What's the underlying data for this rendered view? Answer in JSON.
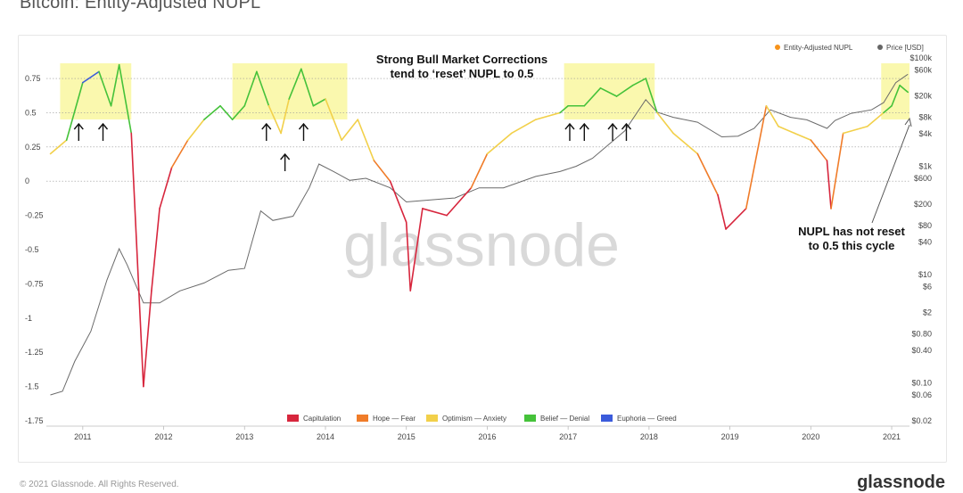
{
  "page": {
    "title": "Bitcoin: Entity-Adjusted NUPL",
    "copyright": "© 2021 Glassnode. All Rights Reserved.",
    "brand": "glassnode",
    "watermark": "glassnode"
  },
  "chart_data": {
    "type": "line",
    "title": "Bitcoin: Entity-Adjusted NUPL",
    "legend_position": "top-right",
    "series": [
      {
        "name": "Entity-Adjusted NUPL",
        "color": "#f7931a",
        "axis": "left",
        "x": [
          2010.6,
          2010.8,
          2011.0,
          2011.2,
          2011.35,
          2011.45,
          2011.6,
          2011.75,
          2011.85,
          2011.95,
          2012.1,
          2012.3,
          2012.5,
          2012.7,
          2012.85,
          2013.0,
          2013.15,
          2013.3,
          2013.45,
          2013.55,
          2013.7,
          2013.85,
          2014.0,
          2014.2,
          2014.4,
          2014.6,
          2014.8,
          2015.0,
          2015.05,
          2015.2,
          2015.5,
          2015.8,
          2016.0,
          2016.3,
          2016.6,
          2016.9,
          2017.0,
          2017.2,
          2017.4,
          2017.6,
          2017.8,
          2017.96,
          2018.1,
          2018.3,
          2018.6,
          2018.85,
          2018.95,
          2019.2,
          2019.45,
          2019.6,
          2019.8,
          2020.0,
          2020.2,
          2020.25,
          2020.4,
          2020.7,
          2020.9,
          2021.0,
          2021.1,
          2021.2
        ],
        "y": [
          0.2,
          0.3,
          0.72,
          0.8,
          0.55,
          0.85,
          0.35,
          -1.5,
          -0.8,
          -0.2,
          0.1,
          0.3,
          0.45,
          0.55,
          0.45,
          0.55,
          0.8,
          0.55,
          0.35,
          0.6,
          0.82,
          0.55,
          0.6,
          0.3,
          0.45,
          0.15,
          0.0,
          -0.3,
          -0.8,
          -0.2,
          -0.25,
          -0.05,
          0.2,
          0.35,
          0.45,
          0.5,
          0.55,
          0.55,
          0.68,
          0.62,
          0.7,
          0.75,
          0.5,
          0.35,
          0.2,
          -0.1,
          -0.35,
          -0.2,
          0.55,
          0.4,
          0.35,
          0.3,
          0.15,
          -0.2,
          0.35,
          0.4,
          0.5,
          0.55,
          0.7,
          0.65
        ]
      },
      {
        "name": "Price [USD]",
        "color": "#666666",
        "axis": "right",
        "x": [
          2010.6,
          2010.75,
          2010.9,
          2011.1,
          2011.3,
          2011.45,
          2011.55,
          2011.75,
          2011.95,
          2012.2,
          2012.5,
          2012.8,
          2013.0,
          2013.2,
          2013.35,
          2013.6,
          2013.8,
          2013.92,
          2014.1,
          2014.3,
          2014.5,
          2014.8,
          2015.0,
          2015.3,
          2015.6,
          2015.9,
          2016.2,
          2016.6,
          2016.9,
          2017.1,
          2017.3,
          2017.5,
          2017.7,
          2017.96,
          2018.1,
          2018.3,
          2018.6,
          2018.9,
          2019.1,
          2019.3,
          2019.5,
          2019.75,
          2019.95,
          2020.2,
          2020.3,
          2020.5,
          2020.75,
          2020.9,
          2021.05,
          2021.2
        ],
        "y": [
          0.06,
          0.07,
          0.25,
          0.9,
          8,
          30,
          15,
          3,
          3,
          5,
          7,
          12,
          13,
          150,
          100,
          120,
          400,
          1100,
          800,
          550,
          600,
          400,
          220,
          240,
          260,
          400,
          400,
          650,
          800,
          1000,
          1400,
          2500,
          4500,
          17000,
          10000,
          8000,
          6500,
          3500,
          3600,
          5000,
          11000,
          8000,
          7200,
          5000,
          7000,
          9500,
          11000,
          15000,
          35000,
          50000
        ]
      }
    ],
    "left_axis": {
      "ticks": [
        "0.75",
        "0.5",
        "0.25",
        "0",
        "-0.25",
        "-0.5",
        "-0.75",
        "-1",
        "-1.25",
        "-1.5",
        "-1.75"
      ],
      "values": [
        0.75,
        0.5,
        0.25,
        0,
        -0.25,
        -0.5,
        -0.75,
        -1,
        -1.25,
        -1.5,
        -1.75
      ]
    },
    "right_axis": {
      "scale": "log",
      "ticks": [
        "$100k",
        "$60k",
        "$20k",
        "$8k",
        "$4k",
        "$1k",
        "$600",
        "$200",
        "$80",
        "$40",
        "$10",
        "$6",
        "$2",
        "$0.80",
        "$0.40",
        "$0.10",
        "$0.06",
        "$0.02"
      ],
      "values": [
        100000,
        60000,
        20000,
        8000,
        4000,
        1000,
        600,
        200,
        80,
        40,
        10,
        6,
        2,
        0.8,
        0.4,
        0.1,
        0.06,
        0.02
      ]
    },
    "x_axis": {
      "ticks": [
        "2011",
        "2012",
        "2013",
        "2014",
        "2015",
        "2016",
        "2017",
        "2018",
        "2019",
        "2020",
        "2021"
      ],
      "values": [
        2011,
        2012,
        2013,
        2014,
        2015,
        2016,
        2017,
        2018,
        2019,
        2020,
        2021
      ],
      "xlim": [
        2010.55,
        2021.22
      ]
    },
    "ylim": [
      -1.75,
      0.9
    ],
    "gridlines": [
      0.75,
      0.5,
      0.25,
      0
    ],
    "zones": [
      {
        "label": "Capitulation",
        "color": "#d7263d"
      },
      {
        "label": "Hope — Fear",
        "color": "#f07c29"
      },
      {
        "label": "Optimism — Anxiety",
        "color": "#f2d04a"
      },
      {
        "label": "Belief — Denial",
        "color": "#45c23a"
      },
      {
        "label": "Euphoria — Greed",
        "color": "#3b5bdb"
      }
    ],
    "highlights": [
      {
        "x0": 2010.72,
        "x1": 2011.6
      },
      {
        "x0": 2012.85,
        "x1": 2014.27
      },
      {
        "x0": 2016.95,
        "x1": 2018.07
      },
      {
        "x0": 2020.87,
        "x1": 2021.22
      }
    ],
    "arrows_up": [
      2010.95,
      2011.25,
      2013.27,
      2013.73,
      2017.02,
      2017.2,
      2017.55,
      2017.72
    ],
    "arrows_up_low": [
      2013.5
    ],
    "annotations": [
      {
        "text": "Strong Bull Market Corrections",
        "id": "a1"
      },
      {
        "text": "tend to ‘reset’ NUPL to 0.5",
        "id": "a2"
      },
      {
        "text": "NUPL has not reset",
        "id": "a3"
      },
      {
        "text": "to 0.5 this cycle",
        "id": "a4"
      }
    ]
  }
}
